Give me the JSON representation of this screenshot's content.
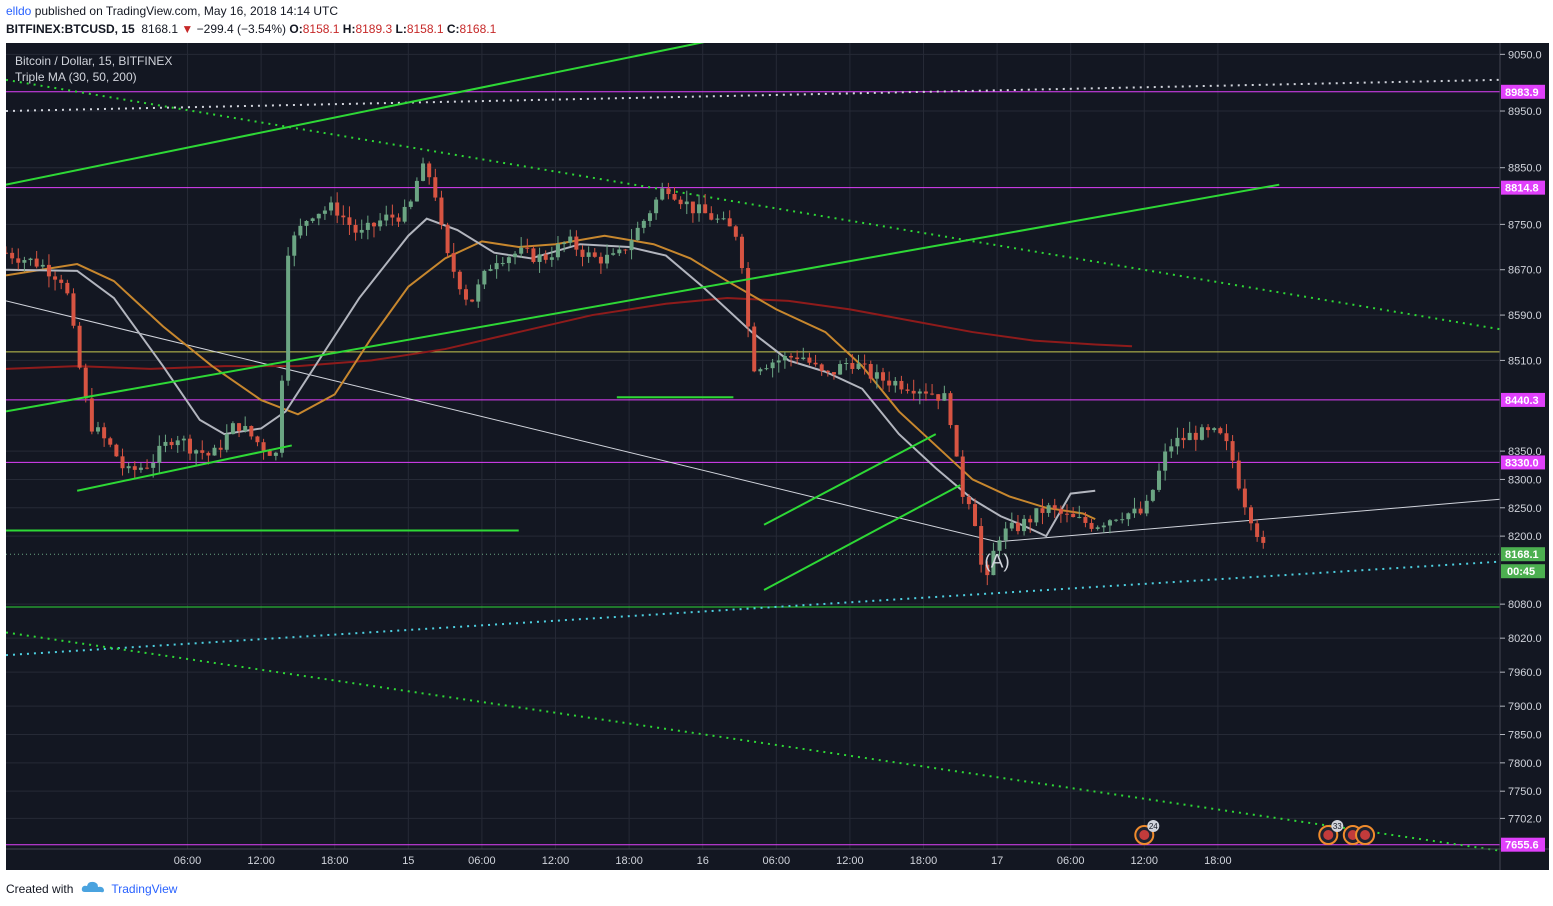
{
  "header": {
    "author": "elldo",
    "published_text": "published on TradingView.com, May 16, 2018 14:14 UTC",
    "symbol": "BITFINEX:BTCUSD, 15",
    "last": "8168.1",
    "change": "−299.4 (−3.54%)",
    "o_label": "O:",
    "o": "8158.1",
    "h_label": "H:",
    "h": "8189.3",
    "l_label": "L:",
    "l": "8158.1",
    "c_label": "C:",
    "c": "8168.1"
  },
  "legend": {
    "title": "Bitcoin / Dollar, 15, BITFINEX",
    "indicator": "Triple MA (30, 50, 200)"
  },
  "footer": {
    "created_with": "Created with",
    "brand": "TradingView"
  },
  "colors": {
    "background": "#131722",
    "grid": "#262a36",
    "candle_up": "#6ba583",
    "candle_down": "#d75442",
    "ma30": "#b2b5be",
    "ma50": "#c7872e",
    "ma200": "#8e1b1b",
    "trendline": "#2ed836",
    "horizontal_level": "#e040fb",
    "yellow_level": "#c8c850",
    "projection": "#d1d4dc",
    "cyan_dotted": "#4dd0e1",
    "price_tag": "#4caf50"
  },
  "chart_data": {
    "type": "candlestick",
    "title": "Bitcoin / Dollar, 15, BITFINEX",
    "interval": "15",
    "x_ticks": [
      "06:00",
      "12:00",
      "18:00",
      "15",
      "06:00",
      "12:00",
      "18:00",
      "16",
      "06:00",
      "12:00",
      "18:00",
      "17",
      "06:00",
      "12:00",
      "18:00"
    ],
    "y_ticks": [
      9050.0,
      8950.0,
      8850.0,
      8750.0,
      8670.0,
      8590.0,
      8510.0,
      8350.0,
      8300.0,
      8250.0,
      8200.0,
      8080.0,
      8020.0,
      7960.0,
      7900.0,
      7850.0,
      7800.0,
      7750.0,
      7702.0
    ],
    "y_tick_labels": [
      "9050.0",
      "8950.0",
      "8850.0",
      "8750.0",
      "8670.0",
      "8590.0",
      "8510.0",
      "8350.0",
      "8300.0",
      "8250.0",
      "8200.0",
      "8080.0",
      "8020.0",
      "7960.0",
      "7900.0",
      "7850.0",
      "7800.0",
      "7750.0",
      "7702.0"
    ],
    "y_range": [
      7648,
      9070
    ],
    "x_range_hours": [
      -8.8,
      113.0
    ],
    "ohlc_summary": {
      "open": 8158.1,
      "high": 8189.3,
      "low": 8158.1,
      "close": 8168.1,
      "change": -299.4,
      "change_pct": -3.54
    },
    "price_labels": [
      {
        "value": 8983.9,
        "label": "8983.9",
        "kind": "level"
      },
      {
        "value": 8814.8,
        "label": "8814.8",
        "kind": "level"
      },
      {
        "value": 8440.3,
        "label": "8440.3",
        "kind": "level"
      },
      {
        "value": 8330.0,
        "label": "8330.0",
        "kind": "level"
      },
      {
        "value": 8168.1,
        "label": "8168.1",
        "kind": "last"
      },
      {
        "value": 7655.6,
        "label": "7655.6",
        "kind": "level"
      }
    ],
    "countdown": "00:45",
    "horizontal_levels": [
      8983.9,
      8814.8,
      8440.3,
      8330.0,
      7655.6
    ],
    "yellow_level": 8525,
    "green_levels": [
      {
        "y": 8075,
        "from": -8.8,
        "to": 113.0
      },
      {
        "y": 8210,
        "from": -8.8,
        "to": 33
      }
    ],
    "trendlines": [
      {
        "x1": -8.8,
        "y1": 8820,
        "x2": 50,
        "y2": 9080
      },
      {
        "x1": -8.8,
        "y1": 8420,
        "x2": 95,
        "y2": 8820
      },
      {
        "x1": -3,
        "y1": 8280,
        "x2": 14.5,
        "y2": 8360
      },
      {
        "x1": 41,
        "y1": 8445,
        "x2": 50.5,
        "y2": 8445
      },
      {
        "x1": 53,
        "y1": 8105,
        "x2": 69,
        "y2": 8290
      },
      {
        "x1": 53,
        "y1": 8220,
        "x2": 67,
        "y2": 8380
      }
    ],
    "dotted_trendlines": [
      {
        "x1": -8.8,
        "y1": 9005,
        "x2": 113,
        "y2": 8565,
        "color": "trendline"
      },
      {
        "x1": -8.8,
        "y1": 7990,
        "x2": 113,
        "y2": 8155,
        "color": "cyan_dotted"
      },
      {
        "x1": -8.8,
        "y1": 8030,
        "x2": 113,
        "y2": 7645,
        "color": "trendline"
      },
      {
        "x1": -8.8,
        "y1": 8950,
        "x2": 113,
        "y2": 9005,
        "color": "projection"
      }
    ],
    "projection_path": {
      "points": [
        [
          -8.8,
          8615
        ],
        [
          72,
          8190
        ],
        [
          113,
          8265
        ]
      ]
    },
    "annotation": {
      "text": "(A)",
      "x": 72,
      "y": 8145
    },
    "ma_series": {
      "ma30": [
        [
          -8.8,
          8670
        ],
        [
          -3,
          8668
        ],
        [
          0,
          8620
        ],
        [
          4,
          8500
        ],
        [
          7,
          8405
        ],
        [
          9,
          8380
        ],
        [
          12,
          8390
        ],
        [
          14,
          8420
        ],
        [
          17,
          8520
        ],
        [
          20,
          8620
        ],
        [
          24,
          8730
        ],
        [
          25.5,
          8760
        ],
        [
          28,
          8740
        ],
        [
          31,
          8700
        ],
        [
          34,
          8690
        ],
        [
          38,
          8715
        ],
        [
          42,
          8710
        ],
        [
          45,
          8695
        ],
        [
          48,
          8640
        ],
        [
          52,
          8560
        ],
        [
          55,
          8510
        ],
        [
          58,
          8490
        ],
        [
          61,
          8460
        ],
        [
          64,
          8380
        ],
        [
          67,
          8320
        ],
        [
          70,
          8265
        ],
        [
          72.3,
          8235
        ],
        [
          74,
          8220
        ],
        [
          76,
          8200
        ],
        [
          78,
          8275
        ],
        [
          80,
          8280
        ]
      ],
      "ma50": [
        [
          -8.8,
          8660
        ],
        [
          -3,
          8680
        ],
        [
          0,
          8650
        ],
        [
          4,
          8570
        ],
        [
          8,
          8500
        ],
        [
          12,
          8440
        ],
        [
          15,
          8415
        ],
        [
          18,
          8450
        ],
        [
          21,
          8550
        ],
        [
          24,
          8640
        ],
        [
          27,
          8690
        ],
        [
          30,
          8720
        ],
        [
          33,
          8710
        ],
        [
          36,
          8715
        ],
        [
          40,
          8730
        ],
        [
          44,
          8715
        ],
        [
          47,
          8690
        ],
        [
          50,
          8650
        ],
        [
          54,
          8600
        ],
        [
          58,
          8560
        ],
        [
          61,
          8500
        ],
        [
          64,
          8420
        ],
        [
          67,
          8360
        ],
        [
          70,
          8300
        ],
        [
          73,
          8270
        ],
        [
          76,
          8250
        ],
        [
          79,
          8240
        ],
        [
          80,
          8230
        ]
      ],
      "ma200": [
        [
          -8.8,
          8495
        ],
        [
          -3,
          8500
        ],
        [
          3,
          8495
        ],
        [
          9,
          8500
        ],
        [
          15,
          8500
        ],
        [
          21,
          8510
        ],
        [
          27,
          8530
        ],
        [
          33,
          8560
        ],
        [
          39,
          8590
        ],
        [
          45,
          8610
        ],
        [
          50,
          8620
        ],
        [
          55,
          8615
        ],
        [
          60,
          8600
        ],
        [
          65,
          8580
        ],
        [
          70,
          8560
        ],
        [
          75,
          8545
        ],
        [
          80,
          8538
        ],
        [
          83,
          8535
        ]
      ]
    },
    "candle_path": [
      [
        -8.8,
        8700
      ],
      [
        -6,
        8680
      ],
      [
        -4,
        8650
      ],
      [
        -3,
        8520
      ],
      [
        -2,
        8400
      ],
      [
        0,
        8350
      ],
      [
        1,
        8310
      ],
      [
        3,
        8330
      ],
      [
        5,
        8380
      ],
      [
        6,
        8360
      ],
      [
        8,
        8340
      ],
      [
        10,
        8400
      ],
      [
        12,
        8360
      ],
      [
        13.5,
        8340
      ],
      [
        14,
        8700
      ],
      [
        16,
        8770
      ],
      [
        18,
        8780
      ],
      [
        20,
        8730
      ],
      [
        22,
        8760
      ],
      [
        24,
        8770
      ],
      [
        25,
        8850
      ],
      [
        26,
        8830
      ],
      [
        27,
        8700
      ],
      [
        29,
        8610
      ],
      [
        31,
        8690
      ],
      [
        33,
        8700
      ],
      [
        35,
        8690
      ],
      [
        37,
        8720
      ],
      [
        39,
        8690
      ],
      [
        41,
        8690
      ],
      [
        43,
        8750
      ],
      [
        45,
        8820
      ],
      [
        47,
        8780
      ],
      [
        49,
        8760
      ],
      [
        51,
        8730
      ],
      [
        52,
        8500
      ],
      [
        54,
        8510
      ],
      [
        56,
        8520
      ],
      [
        58,
        8480
      ],
      [
        60,
        8510
      ],
      [
        62,
        8480
      ],
      [
        64,
        8470
      ],
      [
        66,
        8460
      ],
      [
        68,
        8440
      ],
      [
        69,
        8280
      ],
      [
        70,
        8260
      ],
      [
        71,
        8100
      ],
      [
        72,
        8200
      ],
      [
        74,
        8220
      ],
      [
        76,
        8250
      ],
      [
        78,
        8230
      ],
      [
        80,
        8220
      ],
      [
        82,
        8240
      ],
      [
        84,
        8240
      ],
      [
        86,
        8360
      ],
      [
        88,
        8380
      ],
      [
        90,
        8380
      ],
      [
        91,
        8350
      ],
      [
        92,
        8270
      ],
      [
        93,
        8220
      ],
      [
        94,
        8160
      ]
    ],
    "events": [
      {
        "x": 84,
        "label": "24"
      },
      {
        "x": 99,
        "label": "33"
      },
      {
        "x": 101,
        "label": ""
      },
      {
        "x": 102,
        "label": ""
      }
    ]
  }
}
